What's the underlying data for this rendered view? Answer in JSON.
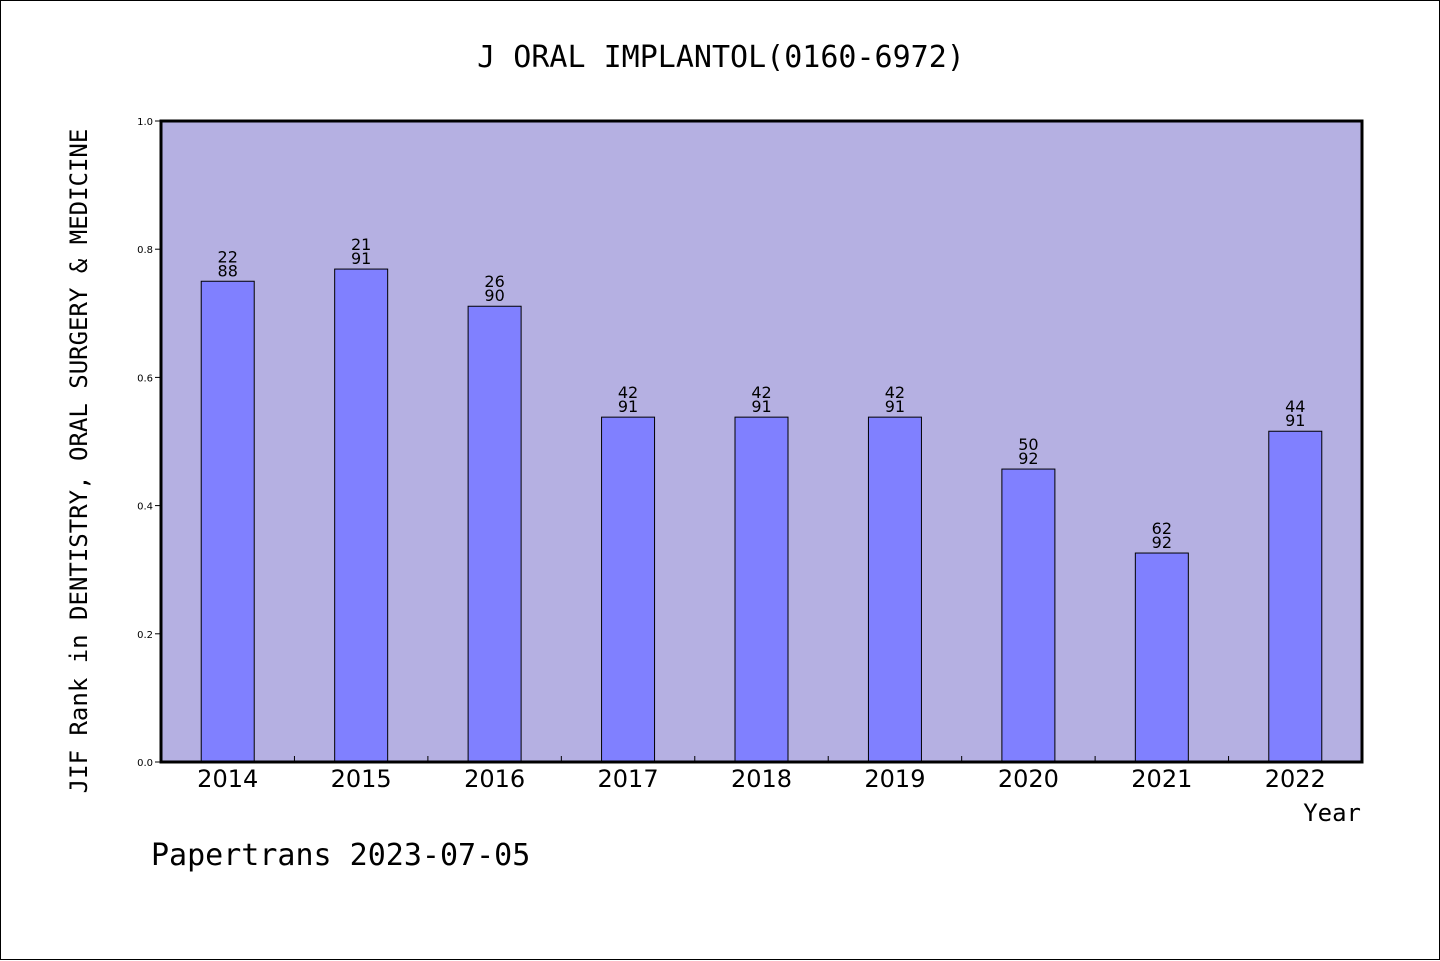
{
  "chart_data": {
    "type": "bar",
    "title": "J ORAL IMPLANTOL(0160-6972)",
    "ylabel": "JIF Rank in DENTISTRY, ORAL SURGERY & MEDICINE",
    "xlabel": "Year",
    "categories": [
      "2014",
      "2015",
      "2016",
      "2017",
      "2018",
      "2019",
      "2020",
      "2021",
      "2022"
    ],
    "values": [
      0.75,
      0.769,
      0.711,
      0.538,
      0.538,
      0.538,
      0.457,
      0.326,
      0.516
    ],
    "rank_labels": [
      {
        "rank": "22",
        "total": "88"
      },
      {
        "rank": "21",
        "total": "91"
      },
      {
        "rank": "26",
        "total": "90"
      },
      {
        "rank": "42",
        "total": "91"
      },
      {
        "rank": "42",
        "total": "91"
      },
      {
        "rank": "42",
        "total": "91"
      },
      {
        "rank": "50",
        "total": "92"
      },
      {
        "rank": "62",
        "total": "92"
      },
      {
        "rank": "44",
        "total": "91"
      }
    ],
    "ylim": [
      0,
      1.0
    ],
    "yticks": [
      "0.0",
      "0.2",
      "0.4",
      "0.6",
      "0.8",
      "1.0"
    ],
    "grid": false,
    "colors": {
      "plot_background": "#B5B0E2",
      "bar_fill": "#8080FF",
      "bar_stroke": "#000000"
    }
  },
  "footer": "Papertrans 2023-07-05"
}
